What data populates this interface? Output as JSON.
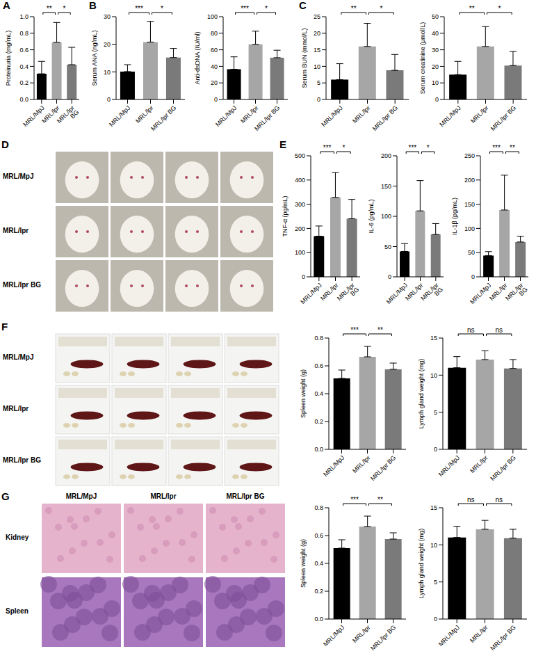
{
  "chart_data": [
    {
      "panel": "A",
      "type": "bar",
      "ylabel": "Proteinuria (mg/mL)",
      "categories": [
        "MRL/MpJ",
        "MRL/lpr",
        "MRL/lpr BG"
      ],
      "values": [
        0.31,
        0.69,
        0.42
      ],
      "error": [
        0.15,
        0.24,
        0.21
      ],
      "ylim": [
        0,
        1
      ],
      "yticks": [
        {
          "value": 0,
          "label": "0.0"
        },
        0.2,
        0.4,
        0.6,
        0.8,
        {
          "value": 1,
          "label": "1.0"
        }
      ],
      "colors": [
        "#000000",
        "#a6a6a6",
        "#7a7a7a"
      ],
      "comparisons": [
        {
          "groups": [
            0,
            1
          ],
          "label": "**"
        },
        {
          "groups": [
            1,
            2
          ],
          "label": "*"
        }
      ]
    },
    {
      "panel": "B",
      "type": "bar",
      "ylabel": "Serum ANA (ng/mL)",
      "categories": [
        "MRL/MpJ",
        "MRL/lpr",
        "MRL/lpr BG"
      ],
      "values": [
        10.1,
        20.8,
        15.2
      ],
      "error": [
        2.5,
        7.5,
        3.3
      ],
      "ylim": [
        0,
        30
      ],
      "yticks": [
        0,
        10,
        20,
        30
      ],
      "colors": [
        "#000000",
        "#a6a6a6",
        "#7a7a7a"
      ],
      "comparisons": [
        {
          "groups": [
            0,
            1
          ],
          "label": "***"
        },
        {
          "groups": [
            1,
            2
          ],
          "label": "*"
        }
      ]
    },
    {
      "panel": "B",
      "type": "bar",
      "ylabel": "Anti-dsDNA (IU/ml)",
      "categories": [
        "MRL/MpJ",
        "MRL/lpr",
        "MRL/lpr BG"
      ],
      "values": [
        36.5,
        66.5,
        50.5
      ],
      "error": [
        15,
        16,
        9
      ],
      "ylim": [
        0,
        100
      ],
      "yticks": [
        0,
        20,
        40,
        60,
        80,
        100
      ],
      "colors": [
        "#000000",
        "#a6a6a6",
        "#7a7a7a"
      ],
      "comparisons": [
        {
          "groups": [
            0,
            1
          ],
          "label": "***"
        },
        {
          "groups": [
            1,
            2
          ],
          "label": "*"
        }
      ]
    },
    {
      "panel": "C",
      "type": "bar",
      "ylabel": "Serum BUN (mmol/L)",
      "categories": [
        "MRL/MpJ",
        "MRL/lpr",
        "MRL/lpr BG"
      ],
      "values": [
        6,
        16,
        8.8
      ],
      "error": [
        4.8,
        7,
        4.8
      ],
      "ylim": [
        0,
        25
      ],
      "yticks": [
        0,
        5,
        10,
        15,
        20,
        25
      ],
      "colors": [
        "#000000",
        "#a6a6a6",
        "#7a7a7a"
      ],
      "comparisons": [
        {
          "groups": [
            0,
            1
          ],
          "label": "**"
        },
        {
          "groups": [
            1,
            2
          ],
          "label": "*"
        }
      ]
    },
    {
      "panel": "C",
      "type": "bar",
      "ylabel": "Serum creatinine (μmol/L)",
      "categories": [
        "MRL/MpJ",
        "MRL/lpr",
        "MRL/lpr BG"
      ],
      "values": [
        15,
        32,
        20.5
      ],
      "error": [
        8,
        12,
        8.5
      ],
      "ylim": [
        0,
        50
      ],
      "yticks": [
        0,
        10,
        20,
        30,
        40,
        50
      ],
      "colors": [
        "#000000",
        "#a6a6a6",
        "#7a7a7a"
      ],
      "comparisons": [
        {
          "groups": [
            0,
            1
          ],
          "label": "**"
        },
        {
          "groups": [
            1,
            2
          ],
          "label": "*"
        }
      ]
    },
    {
      "panel": "E",
      "type": "bar",
      "ylabel": "TNF-α (pg/mL)",
      "categories": [
        "MRL/MpJ",
        "MRL/lpr",
        "MRL/lpr BG"
      ],
      "values": [
        168,
        328,
        240
      ],
      "error": [
        42,
        103,
        80
      ],
      "ylim": [
        0,
        500
      ],
      "yticks": [
        0,
        100,
        200,
        300,
        400,
        500
      ],
      "colors": [
        "#000000",
        "#a6a6a6",
        "#7a7a7a"
      ],
      "comparisons": [
        {
          "groups": [
            0,
            1
          ],
          "label": "***"
        },
        {
          "groups": [
            1,
            2
          ],
          "label": "*"
        }
      ]
    },
    {
      "panel": "E",
      "type": "bar",
      "ylabel": "IL-6 (pg/mL)",
      "categories": [
        "MRL/MpJ",
        "MRL/lpr",
        "MRL/lpr BG"
      ],
      "values": [
        42,
        109,
        70
      ],
      "error": [
        13,
        50,
        18
      ],
      "ylim": [
        0,
        200
      ],
      "yticks": [
        0,
        50,
        100,
        150,
        200
      ],
      "colors": [
        "#000000",
        "#a6a6a6",
        "#7a7a7a"
      ],
      "comparisons": [
        {
          "groups": [
            0,
            1
          ],
          "label": "***"
        },
        {
          "groups": [
            1,
            2
          ],
          "label": "*"
        }
      ]
    },
    {
      "panel": "E",
      "type": "bar",
      "ylabel": "IL-1β (pg/mL)",
      "categories": [
        "MRL/MpJ",
        "MRL/lpr",
        "MRL/lpr BG"
      ],
      "values": [
        44,
        138,
        72
      ],
      "error": [
        8,
        72,
        12
      ],
      "ylim": [
        0,
        250
      ],
      "yticks": [
        0,
        50,
        100,
        150,
        200,
        250
      ],
      "colors": [
        "#000000",
        "#a6a6a6",
        "#7a7a7a"
      ],
      "comparisons": [
        {
          "groups": [
            0,
            1
          ],
          "label": "***"
        },
        {
          "groups": [
            1,
            2
          ],
          "label": "**"
        }
      ]
    },
    {
      "panel": "F",
      "type": "bar",
      "ylabel": "Spleen weight (g)",
      "categories": [
        "MRL/MpJ",
        "MRL/lpr",
        "MRL/lpr BG"
      ],
      "values": [
        0.51,
        0.665,
        0.575
      ],
      "error": [
        0.06,
        0.075,
        0.045
      ],
      "ylim": [
        0,
        0.8
      ],
      "yticks": [
        {
          "value": 0,
          "label": "0.0"
        },
        0.2,
        0.4,
        0.6,
        0.8
      ],
      "colors": [
        "#000000",
        "#a6a6a6",
        "#7a7a7a"
      ],
      "comparisons": [
        {
          "groups": [
            0,
            1
          ],
          "label": "***"
        },
        {
          "groups": [
            1,
            2
          ],
          "label": "**"
        }
      ]
    },
    {
      "panel": "F",
      "type": "bar",
      "ylabel": "Lymph gland weight (mg)",
      "categories": [
        "MRL/MpJ",
        "MRL/lpr",
        "MRL/lpr BG"
      ],
      "values": [
        11,
        12.1,
        10.9
      ],
      "error": [
        1.5,
        1.2,
        1.2
      ],
      "ylim": [
        0,
        15
      ],
      "yticks": [
        0,
        5,
        10,
        15
      ],
      "colors": [
        "#000000",
        "#a6a6a6",
        "#7a7a7a"
      ],
      "comparisons": [
        {
          "groups": [
            0,
            1
          ],
          "label": "ns"
        },
        {
          "groups": [
            1,
            2
          ],
          "label": "ns"
        }
      ]
    },
    {
      "panel": "G",
      "type": "bar",
      "ylabel": "Spleen weight (g)",
      "categories": [
        "MRL/MpJ",
        "MRL/lpr",
        "MRL/lpr BG"
      ],
      "values": [
        0.51,
        0.665,
        0.575
      ],
      "error": [
        0.06,
        0.075,
        0.045
      ],
      "ylim": [
        0,
        0.8
      ],
      "yticks": [
        {
          "value": 0,
          "label": "0.0"
        },
        0.2,
        0.4,
        0.6,
        0.8
      ],
      "colors": [
        "#000000",
        "#a6a6a6",
        "#7a7a7a"
      ],
      "comparisons": [
        {
          "groups": [
            0,
            1
          ],
          "label": "***"
        },
        {
          "groups": [
            1,
            2
          ],
          "label": "**"
        }
      ]
    },
    {
      "panel": "G",
      "type": "bar",
      "ylabel": "Lymph gland weight (mg)",
      "categories": [
        "MRL/MpJ",
        "MRL/lpr",
        "MRL/lpr BG"
      ],
      "values": [
        11,
        12.1,
        10.9
      ],
      "error": [
        1.5,
        1.2,
        1.2
      ],
      "ylim": [
        0,
        15
      ],
      "yticks": [
        0,
        5,
        10,
        15
      ],
      "colors": [
        "#000000",
        "#a6a6a6",
        "#7a7a7a"
      ],
      "comparisons": [
        {
          "groups": [
            0,
            1
          ],
          "label": "ns"
        },
        {
          "groups": [
            1,
            2
          ],
          "label": "ns"
        }
      ]
    }
  ],
  "image_panels": [
    {
      "panel": "D",
      "row_labels": [
        "MRL/MpJ",
        "MRL/lpr",
        "MRL/lpr BG"
      ],
      "columns": 4
    },
    {
      "panel": "F",
      "row_labels": [
        "MRL/MpJ",
        "MRL/lpr",
        "MRL/lpr BG"
      ],
      "columns": 4
    },
    {
      "panel": "G",
      "column_labels": [
        "MRL/MpJ",
        "MRL/lpr",
        "MRL/lpr BG"
      ],
      "row_labels": [
        "Kidney",
        "Spleen"
      ]
    }
  ]
}
